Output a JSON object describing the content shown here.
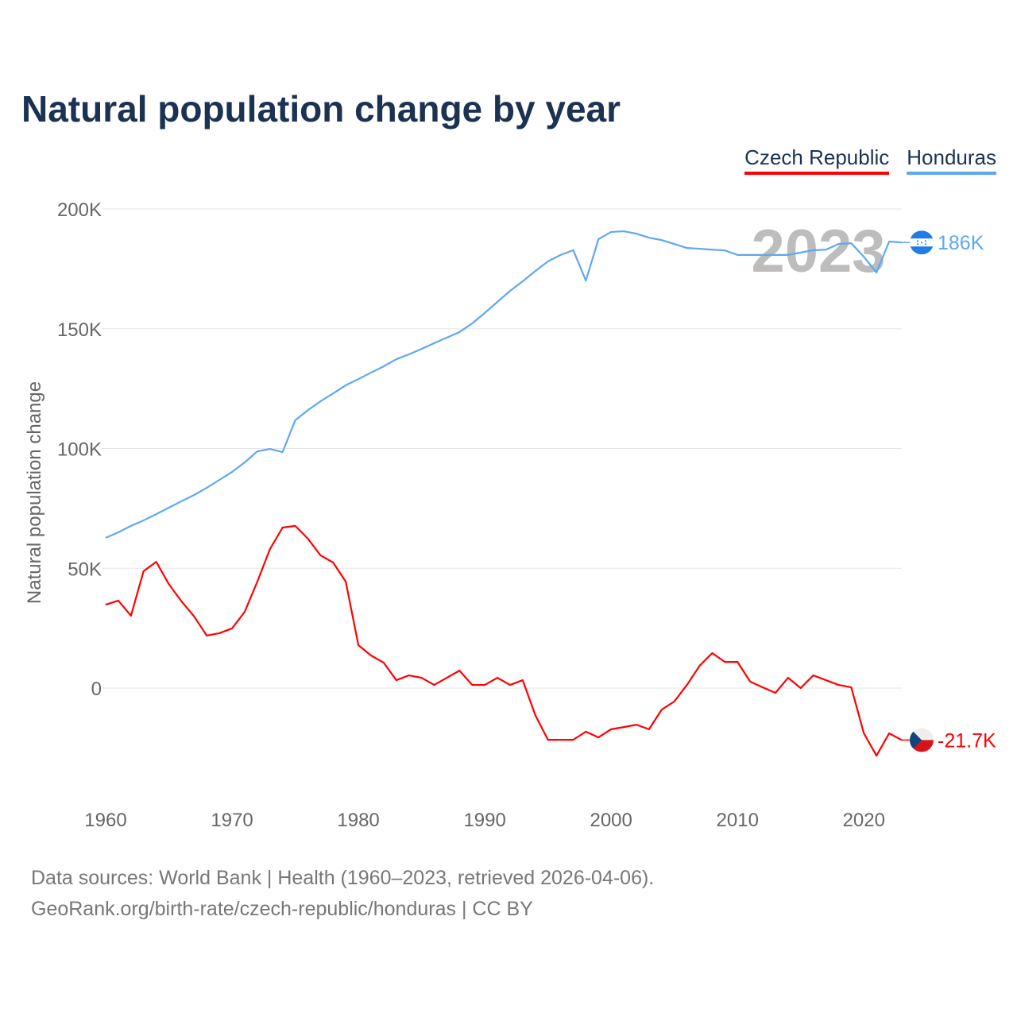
{
  "title": "Natural population change by year",
  "year_label": "2023",
  "footer": {
    "line1": "Data sources: World Bank | Health (1960–2023, retrieved 2026-04-06).",
    "line2": "GeoRank.org/birth-rate/czech-republic/honduras | CC BY"
  },
  "chart_data": {
    "type": "line",
    "title": "Natural population change by year",
    "xlabel": "",
    "ylabel": "Natural population change",
    "xlim": [
      1960,
      2023
    ],
    "ylim": [
      -35000,
      200000
    ],
    "x_ticks": [
      1960,
      1970,
      1980,
      1990,
      2000,
      2010,
      2020
    ],
    "x_tick_labels": [
      "1960",
      "1970",
      "1980",
      "1990",
      "2000",
      "2010",
      "2020"
    ],
    "y_ticks": [
      0,
      50000,
      100000,
      150000,
      200000
    ],
    "y_tick_labels": [
      "0",
      "50K",
      "100K",
      "150K",
      "200K"
    ],
    "grid": true,
    "legend_position": "top-right",
    "series": [
      {
        "name": "Czech Republic",
        "color": "#ff0000",
        "end_label": "-21.7K",
        "flag": "czech-flag",
        "values": [
          34800,
          36500,
          30200,
          48800,
          52700,
          43400,
          36200,
          29900,
          21900,
          22900,
          24900,
          31800,
          44400,
          58000,
          67000,
          67700,
          62400,
          55400,
          52400,
          44400,
          17900,
          13600,
          10600,
          3300,
          5300,
          4300,
          1300,
          4300,
          7300,
          1300,
          1300,
          4300,
          1300,
          3300,
          -11300,
          -21600,
          -21600,
          -21600,
          -18200,
          -20600,
          -17200,
          -16300,
          -15300,
          -17200,
          -9000,
          -5600,
          1300,
          9300,
          14600,
          10900,
          10900,
          2700,
          300,
          -2000,
          4300,
          0,
          5300,
          3300,
          1300,
          300,
          -18900,
          -28200,
          -18900,
          -21700
        ]
      },
      {
        "name": "Honduras",
        "color": "#5ea8f0",
        "end_label": "186K",
        "flag": "honduras-flag",
        "values": [
          62700,
          65000,
          67700,
          70000,
          72600,
          75300,
          78000,
          80600,
          83600,
          86900,
          90200,
          94200,
          98800,
          99800,
          98500,
          111800,
          116000,
          119700,
          123000,
          126400,
          129000,
          131700,
          134300,
          137300,
          139300,
          141600,
          144000,
          146300,
          148600,
          152200,
          156600,
          161200,
          165800,
          169800,
          174100,
          178100,
          180800,
          182800,
          170100,
          187400,
          190400,
          190700,
          189700,
          188000,
          187000,
          185400,
          183700,
          183400,
          183000,
          182700,
          180800,
          180800,
          180800,
          180800,
          180800,
          181800,
          182800,
          183000,
          185400,
          185700,
          180000,
          173500,
          186400,
          186000
        ]
      }
    ]
  }
}
